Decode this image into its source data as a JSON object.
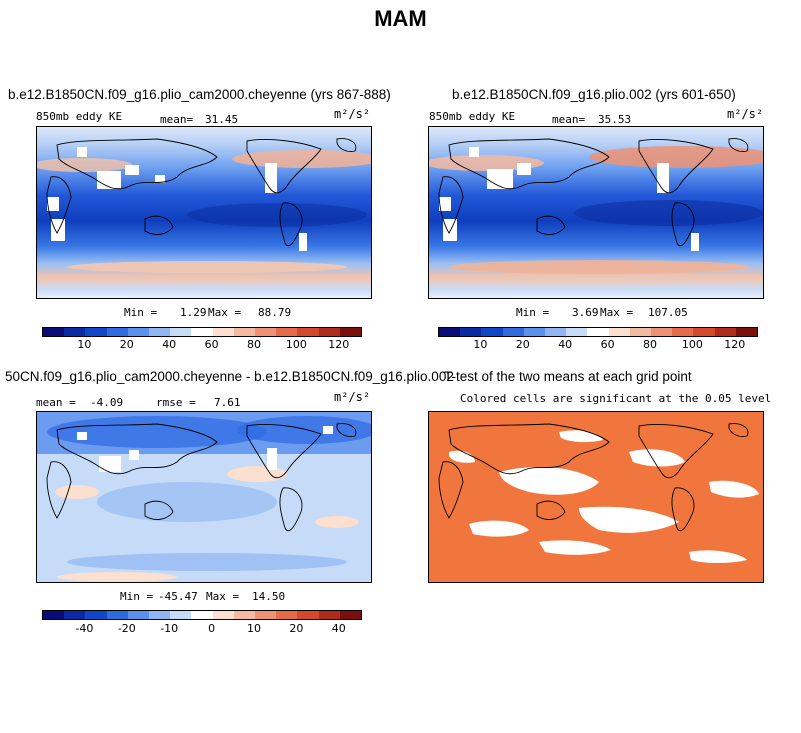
{
  "figure": {
    "title": "MAM"
  },
  "colors": {
    "ke_palette": [
      "#0b0c7a",
      "#0a2aa6",
      "#0f47c8",
      "#2e6be3",
      "#5a90ee",
      "#8fb6f2",
      "#c6dbf7",
      "#ffffff",
      "#fbe0cf",
      "#f4baa0",
      "#ee9273",
      "#e76b4a",
      "#d5492b",
      "#b22a1a",
      "#7a0f0c"
    ],
    "diff_palette": [
      "#0b0c7a",
      "#0a2aa6",
      "#0f47c8",
      "#2e6be3",
      "#5a90ee",
      "#8fb6f2",
      "#c6dbf7",
      "#ffffff",
      "#fbe0cf",
      "#f4baa0",
      "#ee9273",
      "#e76b4a",
      "#d5492b",
      "#b22a1a",
      "#7a0f0c"
    ],
    "ttest_fill": "#f0763e"
  },
  "panels": {
    "left": {
      "title": "b.e12.B1850CN.f09_g16.plio_cam2000.cheyenne (yrs 867-888)",
      "variable": "850mb eddy KE",
      "mean_label": "mean=",
      "mean_value": "31.45",
      "units": "m²/s²",
      "min_label": "Min =",
      "min_value": "1.29",
      "max_label": "Max =",
      "max_value": "88.79"
    },
    "right": {
      "title": "b.e12.B1850CN.f09_g16.plio.002 (yrs 601-650)",
      "variable": "850mb eddy KE",
      "mean_label": "mean=",
      "mean_value": "35.53",
      "units": "m²/s²",
      "min_label": "Min =",
      "min_value": "3.69",
      "max_label": "Max =",
      "max_value": "107.05"
    },
    "diff": {
      "title": "50CN.f09_g16.plio_cam2000.cheyenne - b.e12.B1850CN.f09_g16.plio.002",
      "mean_label": "mean =",
      "mean_value": "-4.09",
      "rmse_label": "rmse =",
      "rmse_value": "7.61",
      "units": "m²/s²",
      "min_label": "Min =",
      "min_value": "-45.47",
      "max_label": "Max =",
      "max_value": "14.50"
    },
    "ttest": {
      "title": "T-test of the two means at each grid point",
      "subtitle": "Colored cells are significant at the 0.05 level"
    }
  },
  "chart_data": [
    {
      "type": "heatmap",
      "title": "b.e12.B1850CN.f09_g16.plio_cam2000.cheyenne (yrs 867-888)",
      "variable": "850mb eddy KE",
      "units": "m^2/s^2",
      "mean": 31.45,
      "min": 1.29,
      "max": 88.79,
      "colorbar_ticks": [
        10,
        20,
        40,
        60,
        80,
        100,
        120
      ],
      "colorbar_tick_labels": [
        "10",
        "20",
        "40",
        "60",
        "80",
        "100",
        "120"
      ]
    },
    {
      "type": "heatmap",
      "title": "b.e12.B1850CN.f09_g16.plio.002 (yrs 601-650)",
      "variable": "850mb eddy KE",
      "units": "m^2/s^2",
      "mean": 35.53,
      "min": 3.69,
      "max": 107.05,
      "colorbar_ticks": [
        10,
        20,
        40,
        60,
        80,
        100,
        120
      ],
      "colorbar_tick_labels": [
        "10",
        "20",
        "40",
        "60",
        "80",
        "100",
        "120"
      ]
    },
    {
      "type": "heatmap",
      "title": "50CN.f09_g16.plio_cam2000.cheyenne - b.e12.B1850CN.f09_g16.plio.002",
      "units": "m^2/s^2",
      "mean": -4.09,
      "rmse": 7.61,
      "min": -45.47,
      "max": 14.5,
      "colorbar_ticks": [
        -40,
        -20,
        -10,
        0,
        10,
        20,
        40
      ],
      "colorbar_tick_labels": [
        "-40",
        "-20",
        "-10",
        "0",
        "10",
        "20",
        "40"
      ]
    },
    {
      "type": "heatmap",
      "title": "T-test of the two means at each grid point",
      "subtitle": "Colored cells are significant at the 0.05 level",
      "significance_level": 0.05
    }
  ]
}
